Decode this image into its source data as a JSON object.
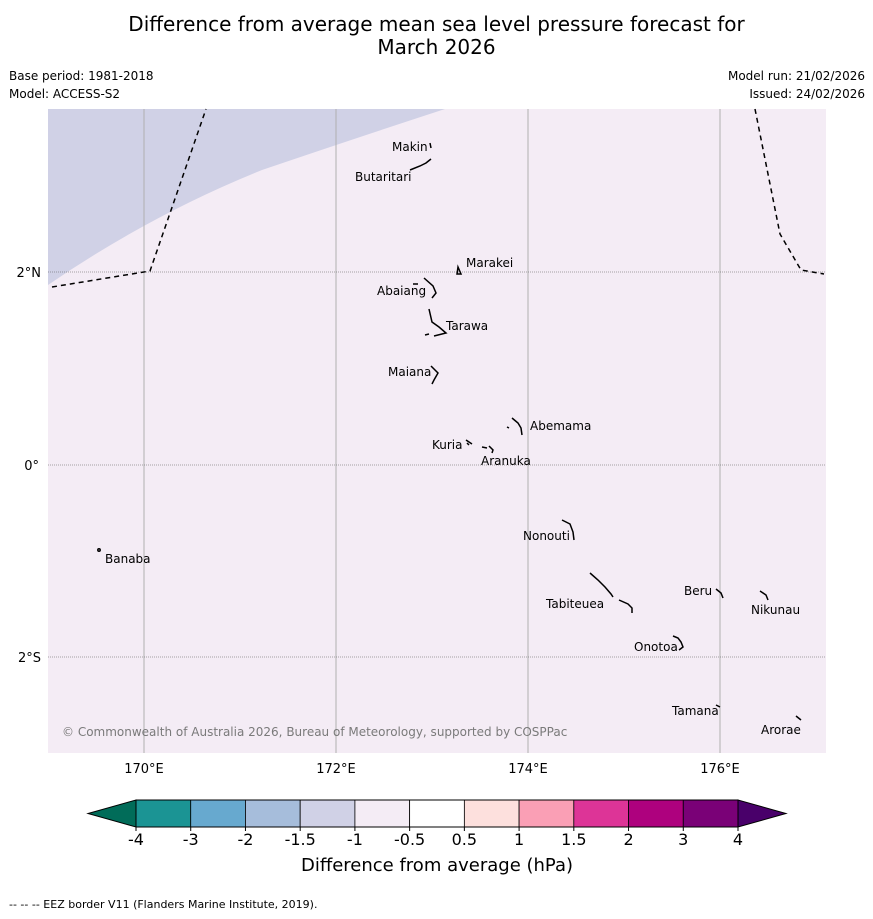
{
  "title": {
    "line1": "Difference from average mean sea level pressure forecast for",
    "line2": "March 2026"
  },
  "meta": {
    "base_period": "Base period: 1981-2018",
    "model": "Model: ACCESS-S2",
    "model_run": "Model run: 21/02/2026",
    "issued": "Issued: 24/02/2026"
  },
  "map": {
    "lon_labels": [
      "170°E",
      "172°E",
      "174°E",
      "176°E"
    ],
    "lat_labels": [
      "2°N",
      "0°",
      "2°S"
    ],
    "islands": [
      "Makin",
      "Butaritari",
      "Marakei",
      "Abaiang",
      "Tarawa",
      "Maiana",
      "Abemama",
      "Kuria",
      "Aranuka",
      "Nonouti",
      "Banaba",
      "Beru",
      "Nikunau",
      "Tabiteuea",
      "Onotoa",
      "Tamana",
      "Arorae"
    ],
    "copyright": "© Commonwealth of Australia 2026, Bureau of Meteorology, supported by COSPPac",
    "colors": {
      "background_anomaly": "#f4ecf5",
      "negative_anomaly": "#d0d1e6",
      "grid": "#b0b0b0"
    }
  },
  "colorbar": {
    "ticks": [
      "-4",
      "-3",
      "-2",
      "-1.5",
      "-1",
      "-0.5",
      "0.5",
      "1",
      "1.5",
      "2",
      "3",
      "4"
    ],
    "colors": [
      "#1b9494",
      "#67a9cf",
      "#a6bddb",
      "#d0d1e6",
      "#f4ecf5",
      "#ffffff",
      "#fde0dd",
      "#fa9fb5",
      "#dd3497",
      "#ae017e",
      "#7a0177"
    ],
    "under_color": "#016c59",
    "over_color": "#49006a",
    "label": "Difference from average (hPa)"
  },
  "footer": "--  --  -- EEZ border V11 (Flanders Marine Institute, 2019)."
}
